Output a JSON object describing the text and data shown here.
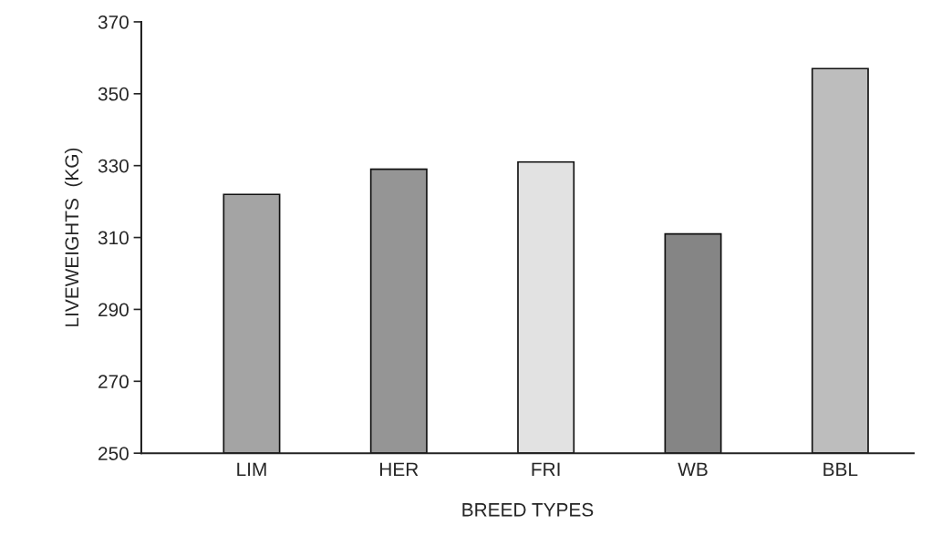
{
  "chart_data": {
    "type": "bar",
    "xlabel": "BREED TYPES",
    "ylabel": "LIVEWEIGHTS  (KG)",
    "categories": [
      "LIM",
      "HER",
      "FRI",
      "WB",
      "BBL"
    ],
    "values": [
      322,
      329,
      331,
      311,
      357
    ],
    "colors": [
      "#a4a4a4",
      "#959595",
      "#e2e2e2",
      "#858585",
      "#bdbdbd"
    ],
    "ylim": [
      250,
      370
    ],
    "yticks": [
      250,
      270,
      290,
      310,
      330,
      350,
      370
    ],
    "grid": false
  }
}
